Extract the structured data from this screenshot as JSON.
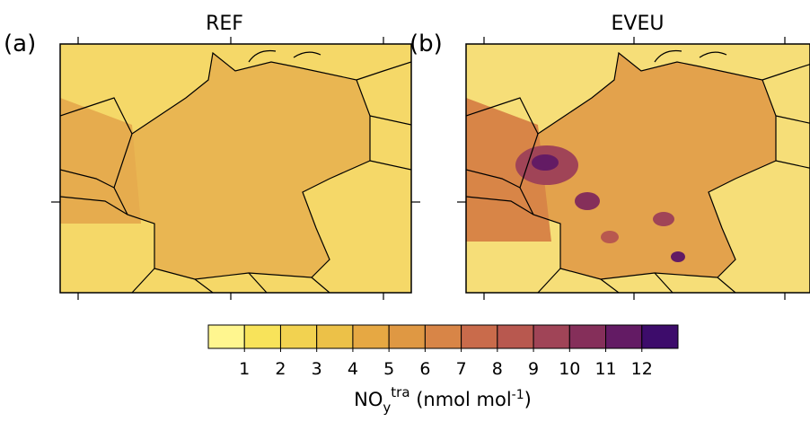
{
  "panels": [
    {
      "label": "(a)",
      "title": "REF"
    },
    {
      "label": "(b)",
      "title": "EVEU"
    }
  ],
  "colorbar": {
    "colors": [
      "#fff68f",
      "#f8e35a",
      "#f2d250",
      "#ecc148",
      "#e6a843",
      "#df9843",
      "#d88547",
      "#c96b4b",
      "#b8584f",
      "#a04457",
      "#852f5a",
      "#631b64",
      "#3d0c6b"
    ],
    "ticks": [
      1,
      2,
      3,
      4,
      5,
      6,
      7,
      8,
      9,
      10,
      11,
      12
    ],
    "label": {
      "base": "NO",
      "subscript": "y",
      "superscript": "tra",
      "units": " (nmol mol",
      "units_exponent": "-1",
      "close": ")"
    }
  }
}
